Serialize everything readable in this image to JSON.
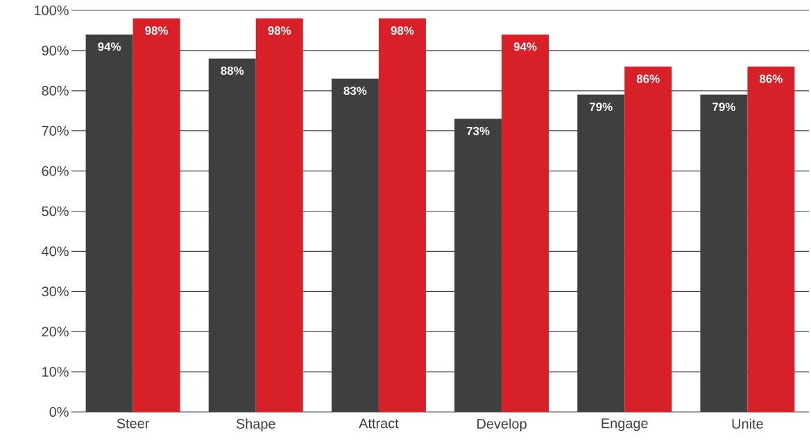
{
  "chart_data": {
    "type": "bar",
    "categories": [
      "Steer",
      "Shape",
      "Attract",
      "Develop",
      "Engage",
      "Unite"
    ],
    "series": [
      {
        "color": "#3f3f41",
        "values": [
          94,
          88,
          83,
          73,
          79,
          79
        ],
        "value_labels": [
          "94%",
          "88%",
          "83%",
          "73%",
          "79%",
          "79%"
        ]
      },
      {
        "color": "#d72027",
        "values": [
          98,
          98,
          98,
          94,
          86,
          86
        ],
        "value_labels": [
          "98%",
          "98%",
          "98%",
          "94%",
          "86%",
          "86%"
        ]
      }
    ],
    "ylim": [
      0,
      100
    ],
    "yticks": [
      {
        "value": 0,
        "label": "0%"
      },
      {
        "value": 10,
        "label": "10%"
      },
      {
        "value": 20,
        "label": "20%"
      },
      {
        "value": 30,
        "label": "30%"
      },
      {
        "value": 40,
        "label": "40%"
      },
      {
        "value": 50,
        "label": "50%"
      },
      {
        "value": 60,
        "label": "60%"
      },
      {
        "value": 70,
        "label": "70%"
      },
      {
        "value": 80,
        "label": "80%"
      },
      {
        "value": 90,
        "label": "90%"
      },
      {
        "value": 100,
        "label": "100%"
      }
    ],
    "grid": "y"
  }
}
